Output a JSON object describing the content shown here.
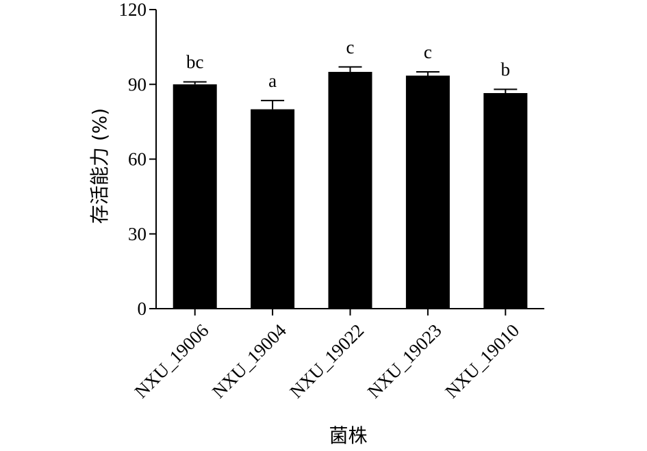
{
  "chart_data": {
    "type": "bar",
    "title": "",
    "xlabel": "菌株",
    "ylabel": "存活能力 (%)",
    "ylim": [
      0,
      120
    ],
    "yticks": [
      0,
      30,
      60,
      90,
      120
    ],
    "yticks_labels": [
      "0",
      "30",
      "60",
      "90",
      "120"
    ],
    "grid": false,
    "legend": "none",
    "categories": [
      "NXU_19006",
      "NXU_19004",
      "NXU_19022",
      "NXU_19023",
      "NXU_19010"
    ],
    "values": [
      90,
      80,
      95,
      93.5,
      86.5
    ],
    "errors": [
      1,
      3.5,
      2,
      1.5,
      1.5
    ],
    "significance": [
      "bc",
      "a",
      "c",
      "c",
      "b"
    ],
    "bar_color": "#000000"
  }
}
